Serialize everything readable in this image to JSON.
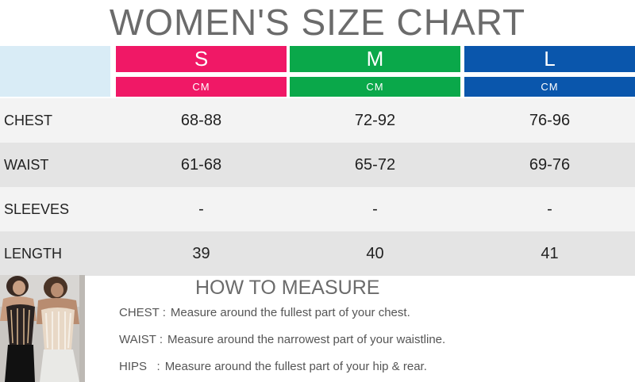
{
  "title": "WOMEN'S SIZE CHART",
  "sizes": [
    {
      "label": "S",
      "unit": "CM",
      "color": "#f01866"
    },
    {
      "label": "M",
      "unit": "CM",
      "color": "#0aa84a"
    },
    {
      "label": "L",
      "unit": "CM",
      "color": "#0a56ac"
    }
  ],
  "rows": [
    {
      "label": "CHEST",
      "values": [
        "68-88",
        "72-92",
        "76-96"
      ]
    },
    {
      "label": "WAIST",
      "values": [
        "61-68",
        "65-72",
        "69-76"
      ]
    },
    {
      "label": "SLEEVES",
      "values": [
        "-",
        "-",
        "-"
      ]
    },
    {
      "label": "LENGTH",
      "values": [
        "39",
        "40",
        "41"
      ]
    }
  ],
  "how_to": {
    "title": "HOW TO MEASURE",
    "items": [
      {
        "key": "CHEST :",
        "desc": "Measure around the fullest part of your chest."
      },
      {
        "key": "WAIST :",
        "desc": "Measure around the narrowest part of your waistline."
      },
      {
        "key": "HIPS   :",
        "desc": "Measure around the fullest part of your hip & rear."
      }
    ]
  }
}
